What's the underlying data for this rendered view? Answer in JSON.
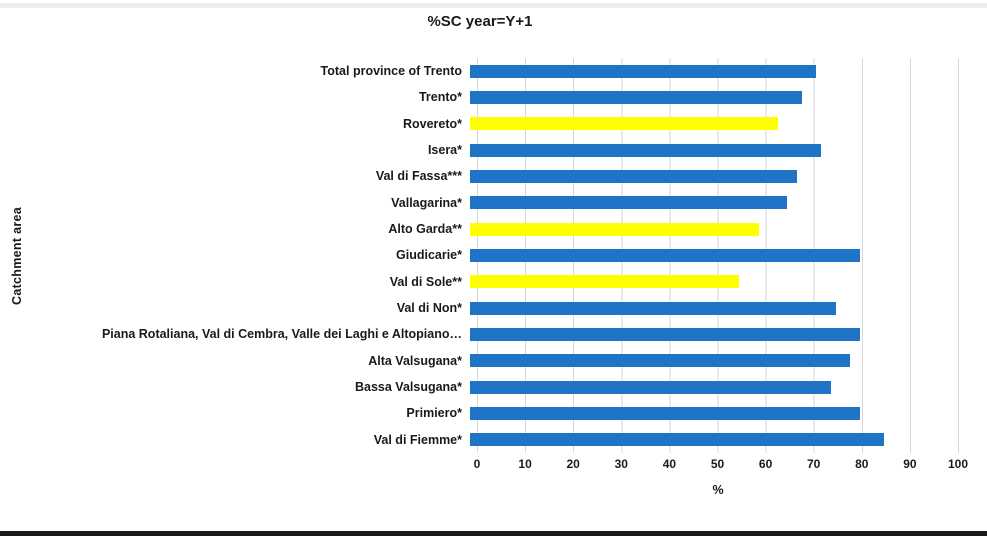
{
  "page": {
    "top_strip_color": "#ededed",
    "bottom_strip_color": "#1b1b1b",
    "background_color": "#ffffff"
  },
  "chart_data": {
    "type": "bar",
    "orientation": "horizontal",
    "title": "%SC year=Y+1",
    "xlabel": "%",
    "ylabel": "Catchment area",
    "xlim": [
      0,
      100
    ],
    "xticks": [
      0,
      10,
      20,
      30,
      40,
      50,
      60,
      70,
      80,
      90,
      100
    ],
    "grid": true,
    "gridline_color": "#d6d6d6",
    "categories": [
      "Total province of Trento",
      "Trento*",
      "Rovereto*",
      "Isera*",
      "Val di Fassa***",
      "Vallagarina*",
      "Alto Garda**",
      "Giudicarie*",
      "Val di Sole**",
      "Val di Non*",
      "Piana Rotaliana, Val di Cembra, Valle dei Laghi e Altopiano…",
      "Alta Valsugana*",
      "Bassa Valsugana*",
      "Primiero*",
      "Val di Fiemme*"
    ],
    "values": [
      72,
      69,
      64,
      73,
      68,
      66,
      60,
      81,
      56,
      76,
      81,
      79,
      75,
      81,
      86
    ],
    "colors": [
      "#2074c7",
      "#2074c7",
      "#ffff00",
      "#2074c7",
      "#2074c7",
      "#2074c7",
      "#ffff00",
      "#2074c7",
      "#ffff00",
      "#2074c7",
      "#2074c7",
      "#2074c7",
      "#2074c7",
      "#2074c7",
      "#2074c7"
    ],
    "palette": {
      "default_bar": "#2074c7",
      "highlight_bar": "#ffff00"
    }
  }
}
